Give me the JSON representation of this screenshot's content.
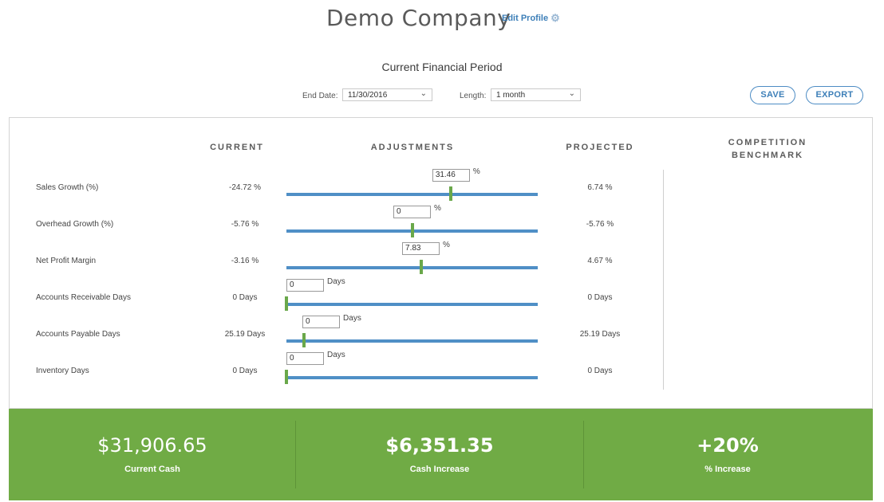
{
  "header": {
    "company_name": "Demo Company",
    "edit_profile_label": "Edit Profile",
    "edit_profile_icon": "gear-icon"
  },
  "period": {
    "title": "Current Financial Period",
    "end_date_label": "End Date:",
    "end_date_value": "11/30/2016",
    "length_label": "Length:",
    "length_value": "1 month"
  },
  "actions": {
    "save_label": "SAVE",
    "export_label": "EXPORT"
  },
  "table": {
    "headers": {
      "current": "CURRENT",
      "adjustments": "ADJUSTMENTS",
      "projected": "PROJECTED",
      "benchmark_line1": "COMPETITION",
      "benchmark_line2": "BENCHMARK"
    },
    "rows": [
      {
        "label": "Sales Growth (%)",
        "current": "-24.72 %",
        "adjustment": "31.46",
        "unit": "%",
        "slider_fraction": 0.655,
        "projected": "6.74 %"
      },
      {
        "label": "Overhead Growth (%)",
        "current": "-5.76 %",
        "adjustment": "0",
        "unit": "%",
        "slider_fraction": 0.5,
        "projected": "-5.76 %"
      },
      {
        "label": "Net Profit Margin",
        "current": "-3.16 %",
        "adjustment": "7.83",
        "unit": "%",
        "slider_fraction": 0.535,
        "projected": "4.67 %"
      },
      {
        "label": "Accounts Receivable Days",
        "current": "0 Days",
        "adjustment": "0",
        "unit": "Days",
        "slider_fraction": 0.0,
        "projected": "0 Days"
      },
      {
        "label": "Accounts Payable Days",
        "current": "25.19 Days",
        "adjustment": "0",
        "unit": "Days",
        "slider_fraction": 0.07,
        "projected": "25.19 Days"
      },
      {
        "label": "Inventory Days",
        "current": "0 Days",
        "adjustment": "0",
        "unit": "Days",
        "slider_fraction": 0.0,
        "projected": "0 Days"
      }
    ]
  },
  "summary": {
    "current_cash_value": "$31,906.65",
    "current_cash_label": "Current Cash",
    "cash_increase_value": "$6,351.35",
    "cash_increase_label": "Cash Increase",
    "percent_increase_value": "+20%",
    "percent_increase_label": "% Increase"
  },
  "colors": {
    "accent_blue": "#3d7fb8",
    "slider_track": "#4f8fc6",
    "slider_thumb": "#6aa84a",
    "summary_green": "#70ab45"
  }
}
